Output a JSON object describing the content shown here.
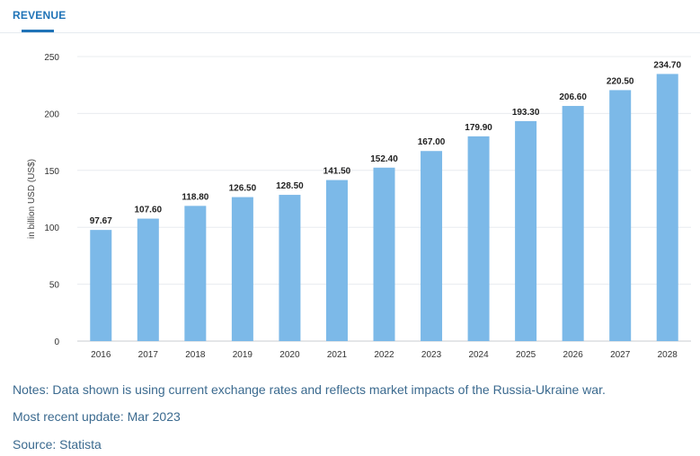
{
  "tab": {
    "label": "REVENUE"
  },
  "chart_data": {
    "type": "bar",
    "categories": [
      "2016",
      "2017",
      "2018",
      "2019",
      "2020",
      "2021",
      "2022",
      "2023",
      "2024",
      "2025",
      "2026",
      "2027",
      "2028"
    ],
    "values": [
      97.67,
      107.6,
      118.8,
      126.5,
      128.5,
      141.5,
      152.4,
      167.0,
      179.9,
      193.3,
      206.6,
      220.5,
      234.7
    ],
    "data_labels": [
      "97.67",
      "107.60",
      "118.80",
      "126.50",
      "128.50",
      "141.50",
      "152.40",
      "167.00",
      "179.90",
      "193.30",
      "206.60",
      "220.50",
      "234.70"
    ],
    "ylabel": "in billion USD (US$)",
    "ylim": [
      0,
      250
    ],
    "yticks": [
      0,
      50,
      100,
      150,
      200,
      250
    ],
    "grid": true,
    "bar_color": "#7cb9e8"
  },
  "notes": {
    "line1": "Notes: Data shown is using current exchange rates and reflects market impacts of the Russia-Ukraine war.",
    "line2": "Most recent update: Mar 2023",
    "line3": "Source: Statista"
  }
}
